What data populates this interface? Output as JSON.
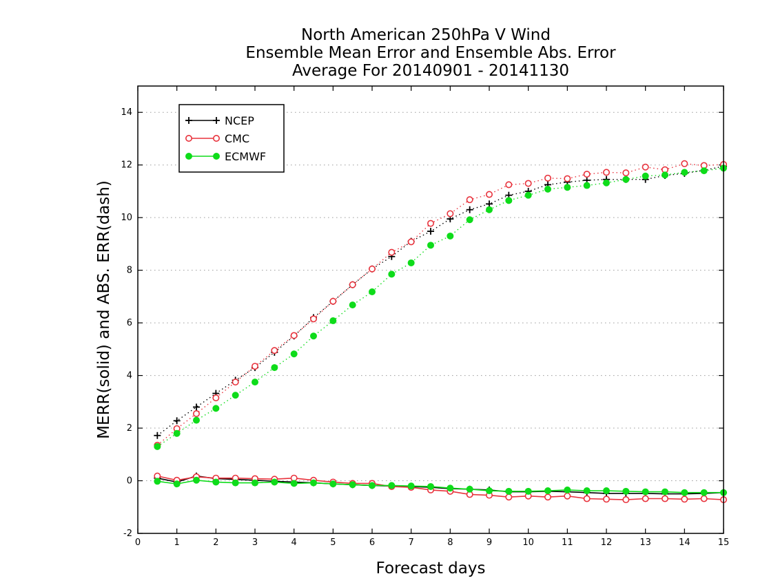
{
  "chart_data": {
    "type": "line",
    "title": "North American 250hPa V Wind",
    "subtitle": "Ensemble Mean Error and Ensemble Abs. Error",
    "subtitle2": "Average For 20140901 - 20141130",
    "xlabel": "Forecast days",
    "ylabel": "MERR(solid) and ABS. ERR(dash)",
    "xlim": [
      0,
      15
    ],
    "ylim": [
      -2,
      15
    ],
    "xticks": [
      "0",
      "1",
      "2",
      "3",
      "4",
      "5",
      "6",
      "7",
      "8",
      "9",
      "10",
      "11",
      "12",
      "13",
      "14",
      "15"
    ],
    "yticks": [
      "-2",
      "0",
      "2",
      "4",
      "6",
      "8",
      "10",
      "12",
      "14"
    ],
    "grid": "horizontal dotted",
    "legend_position": "top-left",
    "x": [
      0.5,
      1,
      1.5,
      2,
      2.5,
      3,
      3.5,
      4,
      4.5,
      5,
      5.5,
      6,
      6.5,
      7,
      7.5,
      8,
      8.5,
      9,
      9.5,
      10,
      10.5,
      11,
      11.5,
      12,
      12.5,
      13,
      13.5,
      14,
      14.5,
      15
    ],
    "series": [
      {
        "name": "NCEP",
        "color": "#000000",
        "marker": "plus",
        "abs_err": [
          1.72,
          2.28,
          2.8,
          3.32,
          3.82,
          4.3,
          4.88,
          5.5,
          6.2,
          6.82,
          7.45,
          8.05,
          8.52,
          9.1,
          9.48,
          9.95,
          10.3,
          10.52,
          10.85,
          11.0,
          11.25,
          11.35,
          11.42,
          11.45,
          11.45,
          11.45,
          11.6,
          11.68,
          11.8,
          11.95
        ],
        "mean_err": [
          0.1,
          -0.05,
          0.18,
          0.08,
          0.05,
          0.02,
          -0.02,
          -0.05,
          -0.08,
          -0.12,
          -0.15,
          -0.18,
          -0.2,
          -0.22,
          -0.25,
          -0.3,
          -0.32,
          -0.35,
          -0.42,
          -0.42,
          -0.4,
          -0.42,
          -0.45,
          -0.48,
          -0.48,
          -0.48,
          -0.5,
          -0.5,
          -0.48,
          -0.45
        ]
      },
      {
        "name": "CMC",
        "color": "#e8323c",
        "marker": "open-circle",
        "abs_err": [
          1.35,
          1.98,
          2.55,
          3.15,
          3.75,
          4.35,
          4.95,
          5.52,
          6.15,
          6.82,
          7.45,
          8.05,
          8.68,
          9.08,
          9.78,
          10.15,
          10.68,
          10.88,
          11.25,
          11.3,
          11.5,
          11.48,
          11.65,
          11.72,
          11.7,
          11.92,
          11.82,
          12.05,
          11.98,
          12.02
        ],
        "mean_err": [
          0.18,
          0.02,
          0.15,
          0.1,
          0.1,
          0.08,
          0.06,
          0.1,
          0.02,
          -0.05,
          -0.1,
          -0.1,
          -0.22,
          -0.25,
          -0.35,
          -0.4,
          -0.52,
          -0.55,
          -0.62,
          -0.58,
          -0.62,
          -0.58,
          -0.68,
          -0.7,
          -0.72,
          -0.68,
          -0.68,
          -0.7,
          -0.68,
          -0.72
        ]
      },
      {
        "name": "ECMWF",
        "color": "#0edc1a",
        "marker": "filled-circle",
        "abs_err": [
          1.3,
          1.8,
          2.3,
          2.75,
          3.25,
          3.75,
          4.3,
          4.82,
          5.5,
          6.08,
          6.68,
          7.18,
          7.85,
          8.28,
          8.95,
          9.3,
          9.92,
          10.3,
          10.65,
          10.85,
          11.08,
          11.15,
          11.22,
          11.32,
          11.45,
          11.58,
          11.62,
          11.72,
          11.78,
          11.88
        ],
        "mean_err": [
          -0.02,
          -0.12,
          0.02,
          -0.05,
          -0.08,
          -0.08,
          -0.05,
          -0.1,
          -0.08,
          -0.12,
          -0.15,
          -0.18,
          -0.18,
          -0.2,
          -0.22,
          -0.28,
          -0.32,
          -0.38,
          -0.4,
          -0.4,
          -0.38,
          -0.35,
          -0.38,
          -0.38,
          -0.4,
          -0.42,
          -0.42,
          -0.45,
          -0.45,
          -0.45
        ]
      }
    ]
  }
}
